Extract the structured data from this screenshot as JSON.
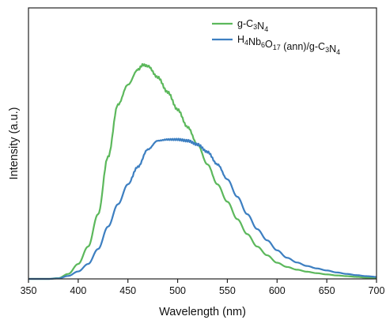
{
  "chart_data": {
    "type": "line",
    "title": "",
    "xlabel": "Wavelength (nm)",
    "ylabel": "Intensity (a.u.)",
    "xlim": [
      350,
      700
    ],
    "ylim": [
      0,
      1.0
    ],
    "grid": false,
    "legend_position": "top-right",
    "x_ticks": [
      350,
      400,
      450,
      500,
      550,
      600,
      650,
      700
    ],
    "x_tick_labels": [
      "350",
      "400",
      "450",
      "500",
      "550",
      "600",
      "650",
      "700"
    ],
    "y_tick_labels_visible": false,
    "series": [
      {
        "name": "g-C3N4",
        "legend_parts": [
          {
            "t": "g-C",
            "sub": false
          },
          {
            "t": "3",
            "sub": true
          },
          {
            "t": "N",
            "sub": false
          },
          {
            "t": "4",
            "sub": true
          }
        ],
        "color": "#5cb85c",
        "x": [
          350,
          370,
          380,
          390,
          400,
          410,
          420,
          430,
          440,
          450,
          460,
          465,
          470,
          480,
          490,
          500,
          510,
          520,
          530,
          540,
          550,
          560,
          570,
          580,
          590,
          600,
          610,
          620,
          630,
          640,
          650,
          660,
          670,
          680,
          690,
          700
        ],
        "y": [
          0.0,
          0.0,
          0.003,
          0.02,
          0.06,
          0.13,
          0.26,
          0.49,
          0.7,
          0.78,
          0.84,
          0.86,
          0.855,
          0.81,
          0.75,
          0.68,
          0.61,
          0.54,
          0.46,
          0.38,
          0.31,
          0.24,
          0.18,
          0.13,
          0.095,
          0.065,
          0.048,
          0.037,
          0.029,
          0.023,
          0.018,
          0.014,
          0.011,
          0.008,
          0.005,
          0.002
        ]
      },
      {
        "name": "H4Nb6O17 (ann)/g-C3N4",
        "legend_parts": [
          {
            "t": "H",
            "sub": false
          },
          {
            "t": "4",
            "sub": true
          },
          {
            "t": "Nb",
            "sub": false
          },
          {
            "t": "6",
            "sub": true
          },
          {
            "t": "O",
            "sub": false
          },
          {
            "t": "17",
            "sub": true
          },
          {
            "t": " (ann)/g-C",
            "sub": false
          },
          {
            "t": "3",
            "sub": true
          },
          {
            "t": "N",
            "sub": false
          },
          {
            "t": "4",
            "sub": true
          }
        ],
        "color": "#3d7fc1",
        "x": [
          350,
          370,
          380,
          390,
          400,
          410,
          420,
          430,
          440,
          450,
          460,
          470,
          480,
          490,
          500,
          510,
          520,
          530,
          540,
          550,
          560,
          570,
          580,
          590,
          600,
          610,
          620,
          630,
          640,
          650,
          660,
          670,
          680,
          690,
          700
        ],
        "y": [
          0.0,
          0.0,
          0.002,
          0.012,
          0.03,
          0.06,
          0.12,
          0.21,
          0.3,
          0.38,
          0.45,
          0.52,
          0.555,
          0.56,
          0.56,
          0.555,
          0.54,
          0.51,
          0.46,
          0.4,
          0.33,
          0.26,
          0.2,
          0.155,
          0.115,
          0.085,
          0.066,
          0.052,
          0.042,
          0.034,
          0.026,
          0.02,
          0.015,
          0.011,
          0.008
        ]
      }
    ]
  }
}
